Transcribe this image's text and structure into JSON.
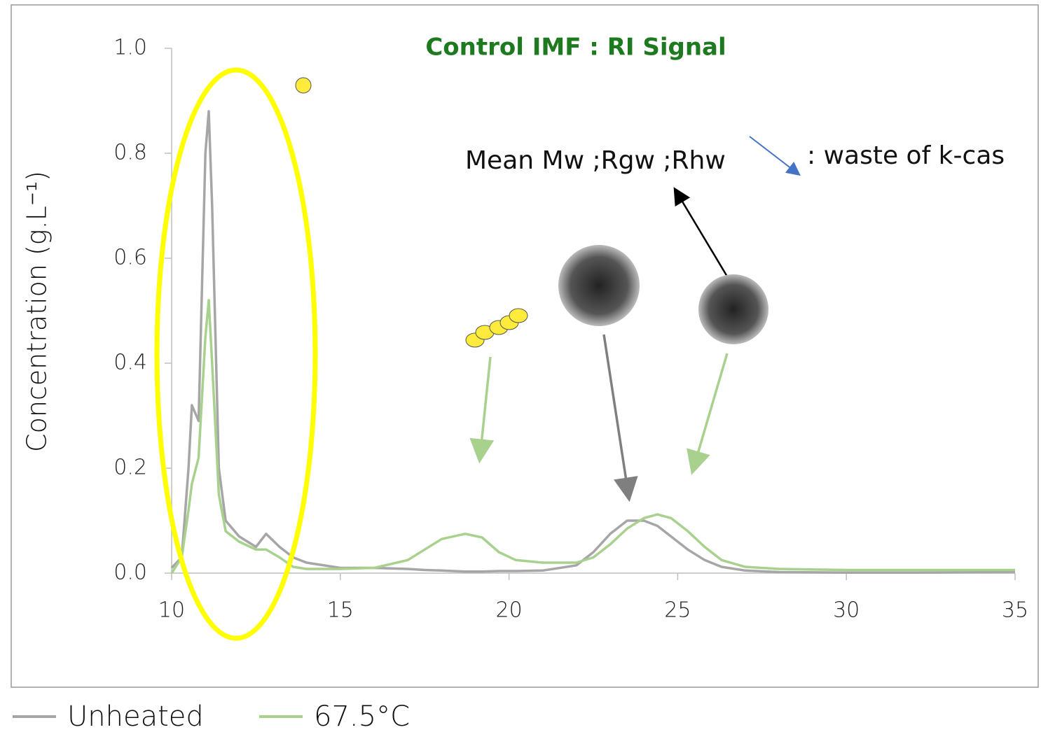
{
  "chart_data": {
    "type": "line",
    "title": "Control IMF : RI Signal",
    "y_label": "Concentration (g.L⁻¹)",
    "annotations": [
      "Mean Mw ;Rgw ;Rhw",
      ": waste of k-cas"
    ],
    "x": [
      10,
      10.3,
      10.5,
      10.6,
      10.8,
      11.0,
      11.1,
      11.2,
      11.4,
      11.6,
      12,
      12.5,
      12.8,
      13.2,
      13.6,
      14,
      15,
      16,
      17,
      17.5,
      18,
      18.7,
      19.2,
      19.7,
      20.2,
      21,
      22,
      22.5,
      23,
      23.5,
      24,
      24.4,
      24.8,
      25.3,
      25.8,
      26.3,
      27,
      28,
      30,
      32,
      35
    ],
    "series": [
      {
        "name": "Unheated",
        "color": "#a6a6a6",
        "values": [
          0.01,
          0.03,
          0.2,
          0.32,
          0.29,
          0.8,
          0.88,
          0.7,
          0.2,
          0.1,
          0.07,
          0.05,
          0.075,
          0.05,
          0.03,
          0.02,
          0.01,
          0.01,
          0.008,
          0.006,
          0.005,
          0.003,
          0.003,
          0.004,
          0.004,
          0.005,
          0.015,
          0.04,
          0.075,
          0.1,
          0.1,
          0.09,
          0.07,
          0.045,
          0.025,
          0.012,
          0.005,
          0.002,
          0.001,
          0.001,
          0.002
        ]
      },
      {
        "name": "67.5°C",
        "color": "#a9d18e",
        "values": [
          0,
          0.03,
          0.12,
          0.17,
          0.22,
          0.45,
          0.52,
          0.4,
          0.15,
          0.08,
          0.06,
          0.045,
          0.045,
          0.03,
          0.012,
          0.008,
          0.008,
          0.01,
          0.025,
          0.045,
          0.065,
          0.075,
          0.068,
          0.04,
          0.025,
          0.02,
          0.02,
          0.03,
          0.055,
          0.085,
          0.105,
          0.112,
          0.105,
          0.08,
          0.05,
          0.025,
          0.012,
          0.008,
          0.006,
          0.006,
          0.006
        ]
      }
    ],
    "xlim": [
      10,
      35
    ],
    "xticks": [
      10,
      15,
      20,
      25,
      30,
      35
    ],
    "ylim": [
      0,
      1
    ],
    "yticks": [
      {
        "value": 0,
        "label": "0.0"
      },
      0.2,
      0.4,
      0.6,
      0.8,
      {
        "value": 1,
        "label": "1.0"
      }
    ],
    "grid": false,
    "legend": "bottom"
  }
}
